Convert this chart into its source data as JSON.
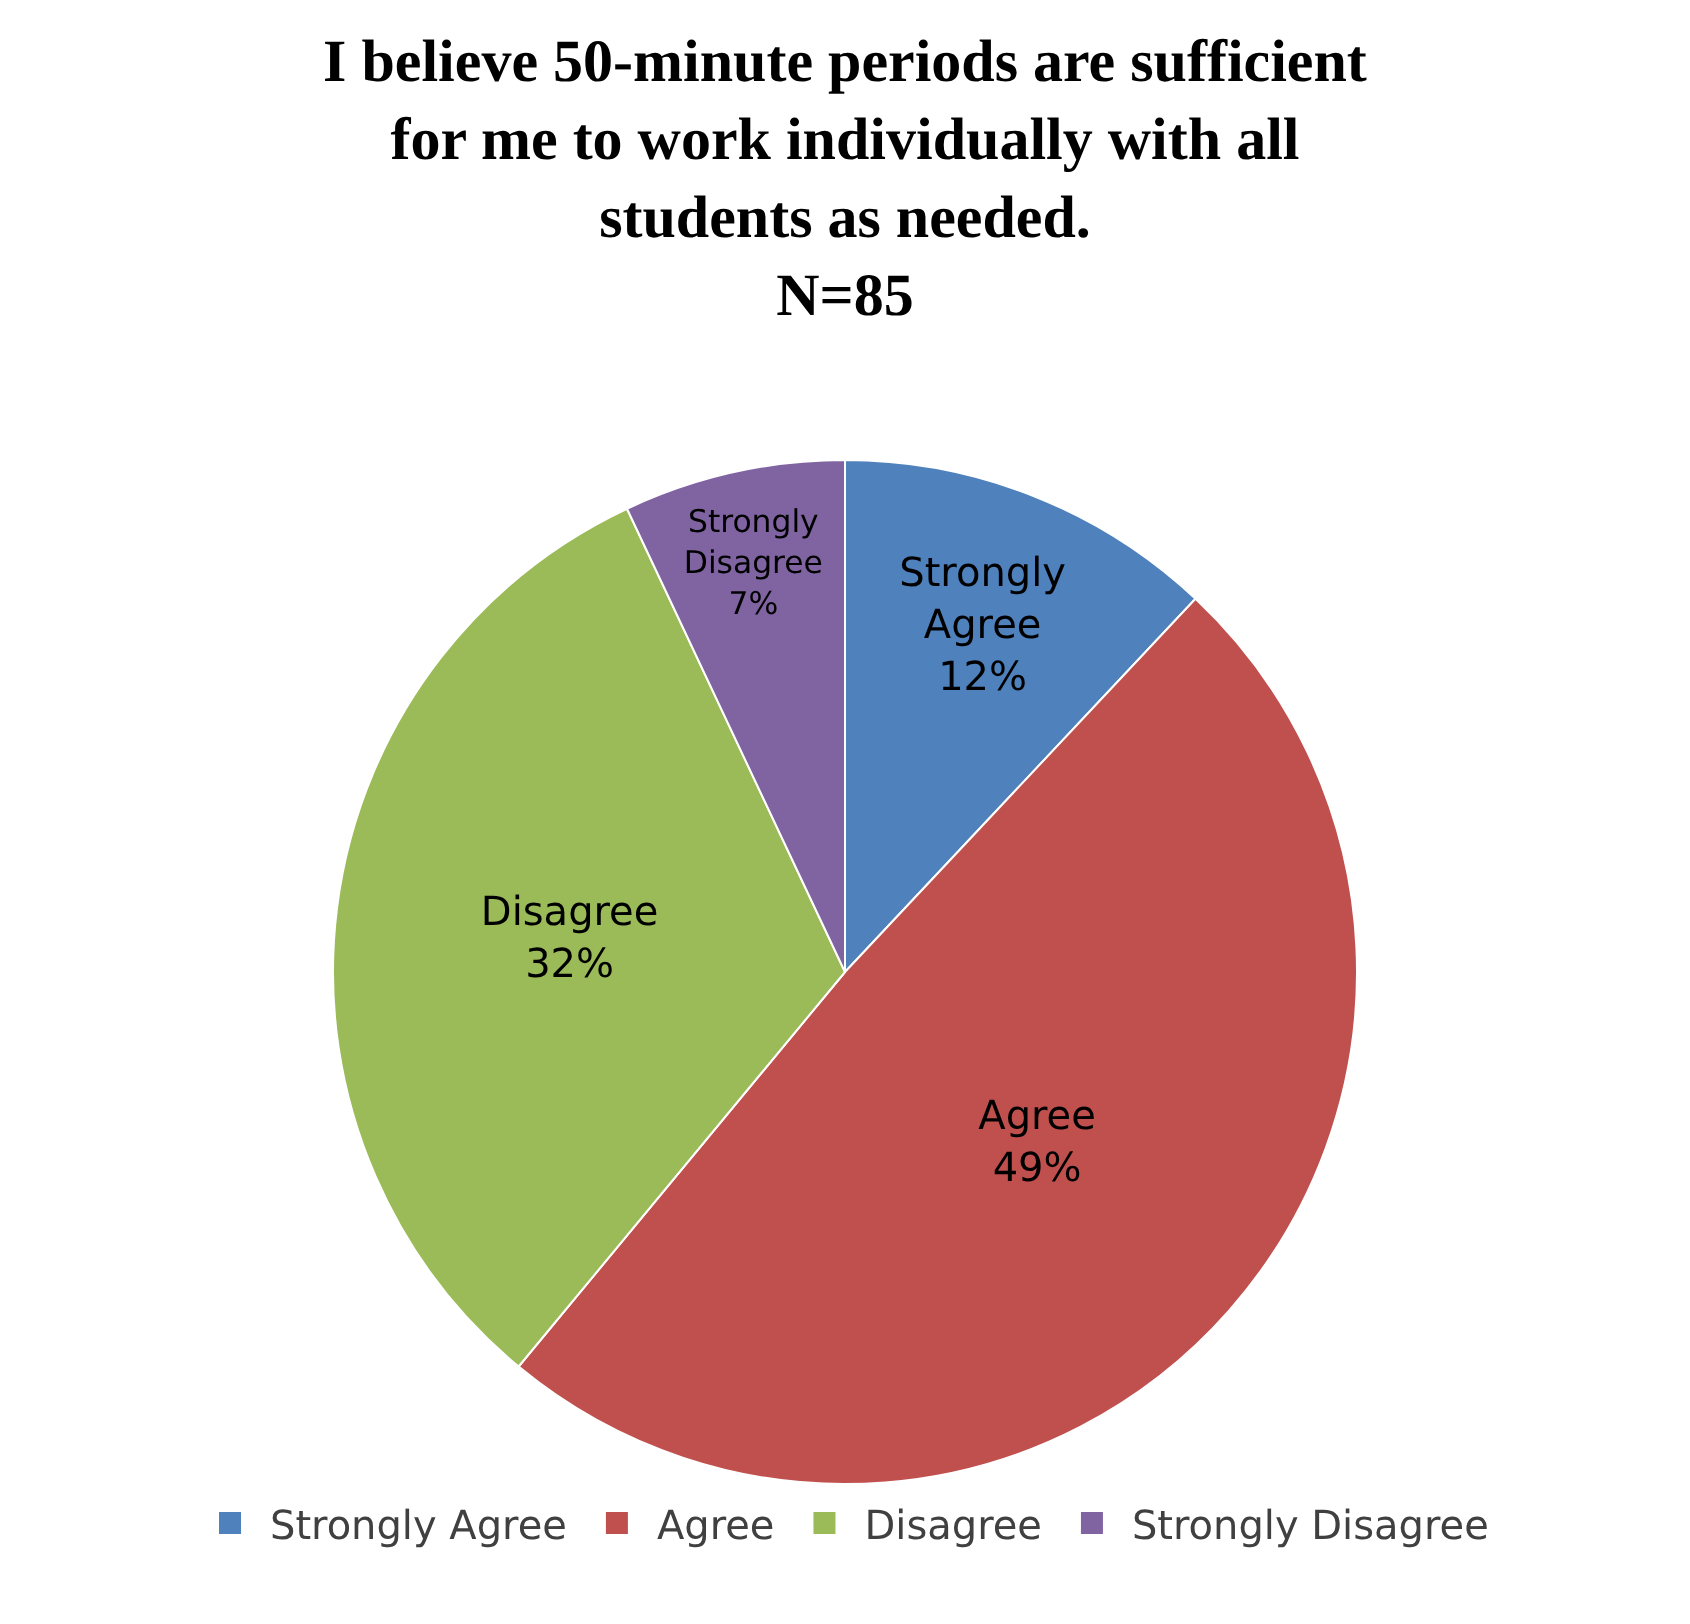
{
  "chart_data": {
    "type": "pie",
    "title": "I believe 50-minute periods are sufficient for me to work individually with all students as needed.",
    "subtitle": "N=85",
    "categories": [
      "Strongly Agree",
      "Agree",
      "Disagree",
      "Strongly Disagree"
    ],
    "values": [
      12,
      49,
      32,
      7
    ],
    "colors": [
      "#4f81bd",
      "#c0504d",
      "#9bbb59",
      "#8064a2"
    ],
    "value_labels": [
      "12%",
      "49%",
      "32%",
      "7%"
    ],
    "legend": "bottom"
  }
}
